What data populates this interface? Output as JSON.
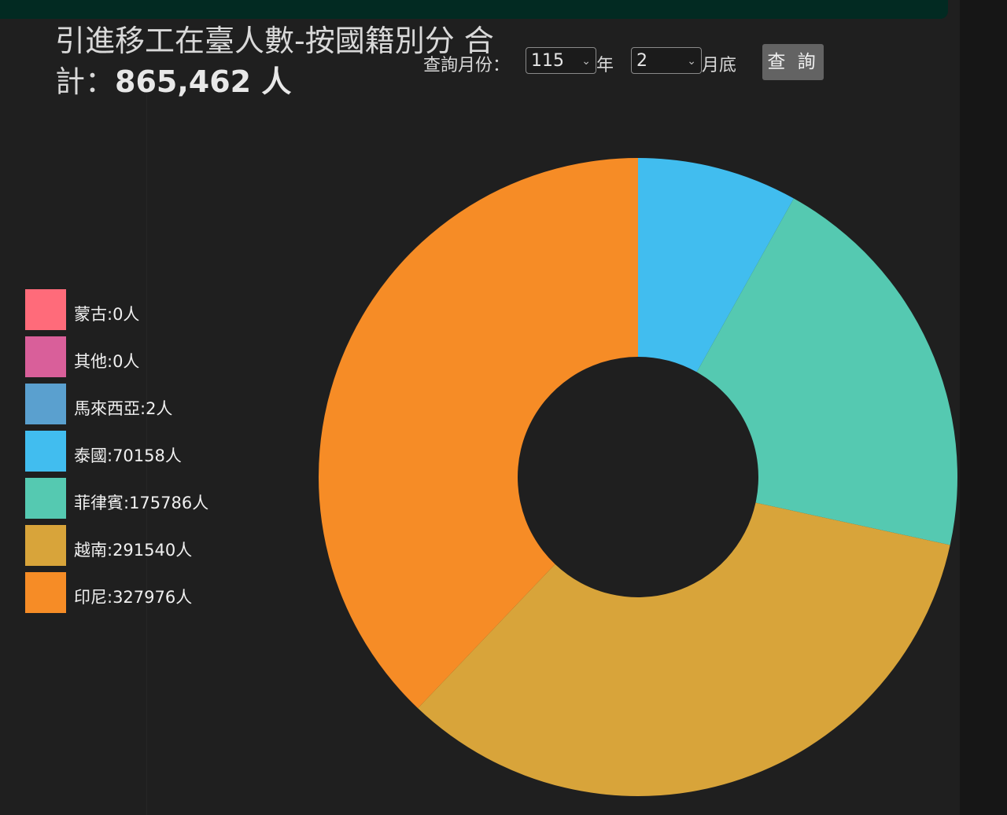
{
  "header": {
    "title_text": "引進移工在臺人數-按國籍別分 合計：",
    "total_value": "865,462 人"
  },
  "controls": {
    "month_label": "查詢月份：",
    "year_value": "115",
    "year_suffix": "年",
    "month_value": "2",
    "month_suffix": "月底",
    "query_button": "查 詢"
  },
  "colors": {
    "background": "#1f1f1f",
    "header_bar": "#022a22"
  },
  "chart_data": {
    "type": "pie",
    "style": "donut",
    "categories": [
      "蒙古",
      "其他",
      "馬來西亞",
      "泰國",
      "菲律賓",
      "越南",
      "印尼"
    ],
    "values": [
      0,
      0,
      2,
      70158,
      175786,
      291540,
      327976
    ],
    "colors": [
      "#ff6b7a",
      "#d95f9a",
      "#5aa0cf",
      "#41bdef",
      "#55c9b1",
      "#d8a43a",
      "#f68c26"
    ],
    "legend_labels": [
      "蒙古:0人",
      "其他:0人",
      "馬來西亞:2人",
      "泰國:70158人",
      "菲律賓:175786人",
      "越南:291540人",
      "印尼:327976人"
    ],
    "legend_position": "left",
    "start_angle": "top, clockwise"
  }
}
